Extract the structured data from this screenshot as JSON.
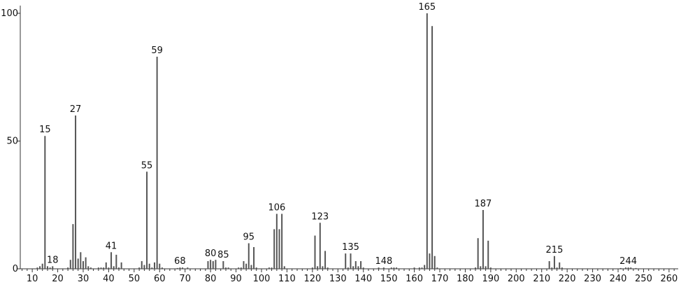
{
  "chart_data": {
    "type": "bar",
    "title": "",
    "xlabel": "",
    "ylabel": "",
    "xlim": [
      5.3,
      263.6
    ],
    "ylim": [
      0,
      100
    ],
    "x_ticks": [
      10,
      20,
      30,
      40,
      50,
      60,
      70,
      80,
      90,
      100,
      110,
      120,
      130,
      140,
      150,
      160,
      170,
      180,
      190,
      200,
      210,
      220,
      230,
      240,
      250,
      260
    ],
    "y_ticks": [
      0,
      50,
      100
    ],
    "grid": false,
    "bar_color": "#555555",
    "peaks": [
      [
        12,
        0.5
      ],
      [
        13,
        1
      ],
      [
        14,
        2
      ],
      [
        15,
        52
      ],
      [
        16,
        1
      ],
      [
        17,
        0.5
      ],
      [
        18,
        1
      ],
      [
        24,
        0.5
      ],
      [
        25,
        3.5
      ],
      [
        26,
        17.5
      ],
      [
        27,
        60
      ],
      [
        28,
        4
      ],
      [
        29,
        6.5
      ],
      [
        30,
        3
      ],
      [
        31,
        4.5
      ],
      [
        32,
        1
      ],
      [
        33,
        0.5
      ],
      [
        36,
        0.5
      ],
      [
        37,
        0.5
      ],
      [
        38,
        0.5
      ],
      [
        39,
        2.5
      ],
      [
        40,
        0.5
      ],
      [
        41,
        6.5
      ],
      [
        42,
        1
      ],
      [
        43,
        5.5
      ],
      [
        44,
        0.5
      ],
      [
        45,
        2.5
      ],
      [
        52,
        0.5
      ],
      [
        53,
        3
      ],
      [
        54,
        1.5
      ],
      [
        55,
        38
      ],
      [
        56,
        2
      ],
      [
        57,
        0.5
      ],
      [
        58,
        2.5
      ],
      [
        59,
        83
      ],
      [
        60,
        2
      ],
      [
        61,
        0.5
      ],
      [
        67,
        0.3
      ],
      [
        68,
        0.5
      ],
      [
        69,
        0.5
      ],
      [
        71,
        0.5
      ],
      [
        79,
        3
      ],
      [
        80,
        3.5
      ],
      [
        81,
        3
      ],
      [
        82,
        3.5
      ],
      [
        85,
        3
      ],
      [
        86,
        0.5
      ],
      [
        87,
        0.5
      ],
      [
        91,
        0.5
      ],
      [
        92,
        0.5
      ],
      [
        93,
        3
      ],
      [
        94,
        2
      ],
      [
        95,
        10
      ],
      [
        96,
        1.5
      ],
      [
        97,
        8.5
      ],
      [
        98,
        0.5
      ],
      [
        103,
        0.5
      ],
      [
        104,
        0.5
      ],
      [
        105,
        15.5
      ],
      [
        106,
        21.5
      ],
      [
        107,
        15.5
      ],
      [
        108,
        21.5
      ],
      [
        109,
        1
      ],
      [
        120,
        0.5
      ],
      [
        121,
        13
      ],
      [
        122,
        1
      ],
      [
        123,
        18
      ],
      [
        124,
        1
      ],
      [
        125,
        7
      ],
      [
        126,
        0.5
      ],
      [
        133,
        6
      ],
      [
        134,
        0.5
      ],
      [
        135,
        6
      ],
      [
        136,
        1
      ],
      [
        137,
        3
      ],
      [
        138,
        1
      ],
      [
        139,
        3
      ],
      [
        140,
        0.5
      ],
      [
        146,
        0.5
      ],
      [
        148,
        0.5
      ],
      [
        151,
        0.5
      ],
      [
        152,
        0.5
      ],
      [
        153,
        0.5
      ],
      [
        160,
        0.5
      ],
      [
        162,
        0.5
      ],
      [
        163,
        0.5
      ],
      [
        164,
        1.5
      ],
      [
        165,
        100
      ],
      [
        166,
        6
      ],
      [
        167,
        95
      ],
      [
        168,
        5
      ],
      [
        169,
        0.5
      ],
      [
        184,
        0.5
      ],
      [
        185,
        12
      ],
      [
        186,
        1
      ],
      [
        187,
        23
      ],
      [
        188,
        1
      ],
      [
        189,
        11
      ],
      [
        190,
        0.5
      ],
      [
        213,
        3
      ],
      [
        214,
        0.5
      ],
      [
        215,
        5
      ],
      [
        216,
        0.5
      ],
      [
        217,
        2.5
      ],
      [
        218,
        0.5
      ],
      [
        241,
        0.3
      ],
      [
        243,
        0.5
      ],
      [
        244,
        0.5
      ],
      [
        245,
        0.5
      ],
      [
        247,
        0.3
      ]
    ],
    "peak_labels": [
      15,
      18,
      27,
      41,
      55,
      59,
      68,
      80,
      85,
      95,
      106,
      123,
      135,
      148,
      165,
      187,
      215,
      244
    ]
  }
}
